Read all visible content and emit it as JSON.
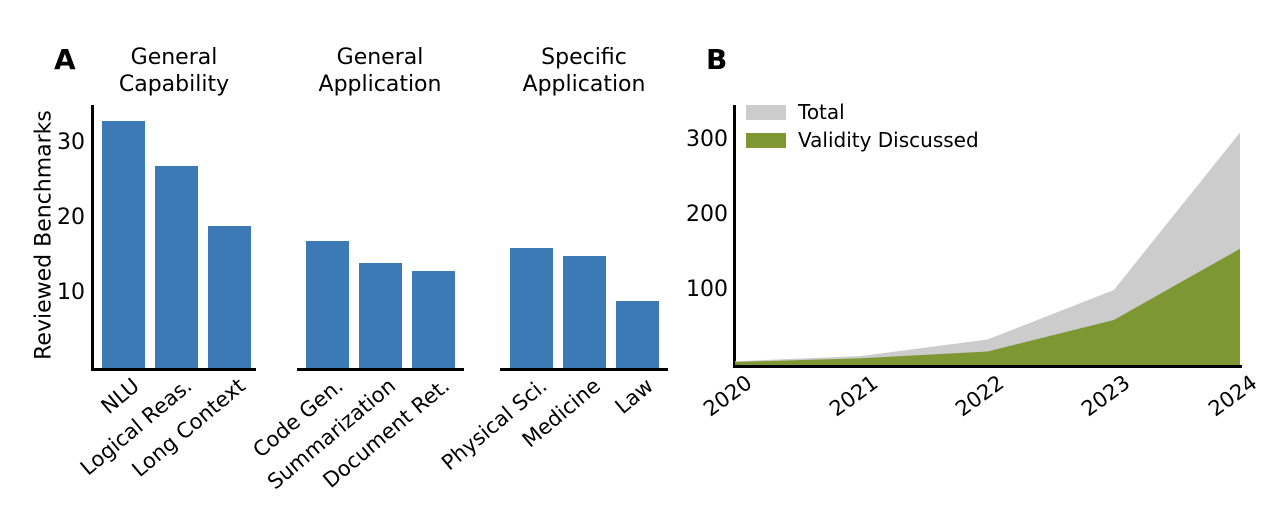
{
  "panels": {
    "a": {
      "letter": "A"
    },
    "b": {
      "letter": "B"
    }
  },
  "chart_data": [
    {
      "type": "bar",
      "panel": "A",
      "ylabel": "Reviewed Benchmarks",
      "yticks": [
        10,
        20,
        30
      ],
      "ylim": [
        0,
        35
      ],
      "bar_color": "#3d7ab5",
      "grid": false,
      "groups": [
        {
          "title": [
            "General",
            "Capability"
          ],
          "categories": [
            "NLU",
            "Logical Reas.",
            "Long Context"
          ],
          "values": [
            33,
            27,
            19
          ]
        },
        {
          "title": [
            "General",
            "Application"
          ],
          "categories": [
            "Code Gen.",
            "Summarization",
            "Document Ret."
          ],
          "values": [
            17,
            14,
            13
          ]
        },
        {
          "title": [
            "Specific",
            "Application"
          ],
          "categories": [
            "Physical Sci.",
            "Medicine",
            "Law"
          ],
          "values": [
            16,
            15,
            9
          ]
        }
      ]
    },
    {
      "type": "area",
      "panel": "B",
      "x": [
        2020,
        2021,
        2022,
        2023,
        2024
      ],
      "xticks": [
        "2020",
        "2021",
        "2022",
        "2023",
        "2024"
      ],
      "yticks": [
        100,
        200,
        300
      ],
      "ylim": [
        0,
        347
      ],
      "grid": false,
      "legend_position": "upper left",
      "series": [
        {
          "name": "Total",
          "values": [
            5,
            12,
            34,
            100,
            310
          ],
          "color": "#cccccc"
        },
        {
          "name": "Validity Discussed",
          "values": [
            4,
            9,
            18,
            60,
            155
          ],
          "color": "#7d9733"
        }
      ]
    }
  ]
}
